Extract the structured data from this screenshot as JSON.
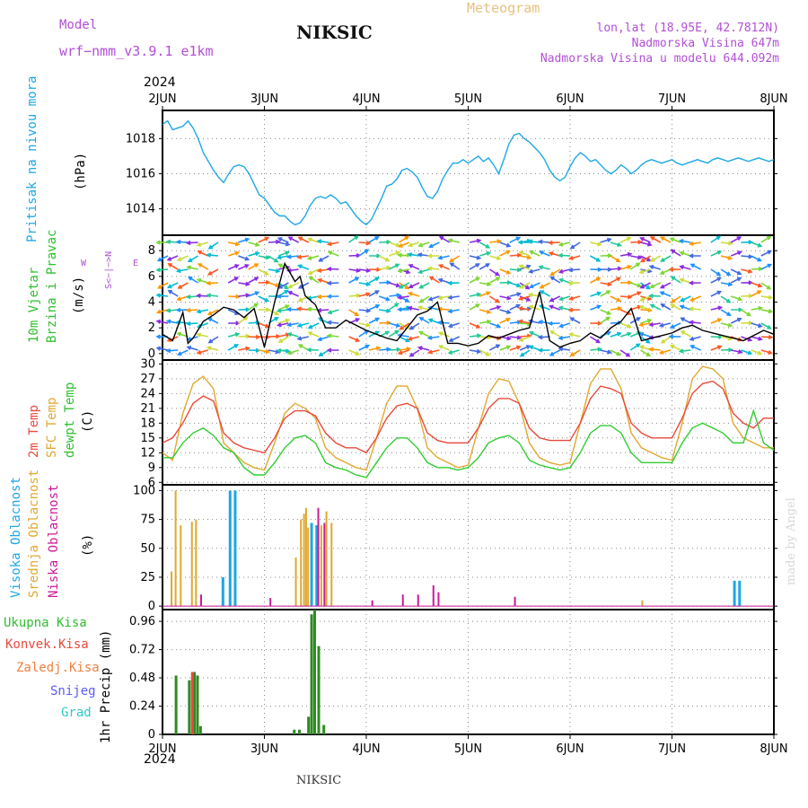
{
  "header": {
    "model_label": "Model",
    "model_name": "wrf−nmm_v3.9.1 e1km",
    "station": "NIKSIC",
    "meteogram": "Meteogram",
    "lonlat": "lon,lat (18.95E, 42.7812N)",
    "elevation": "Nadmorska Visina 647m",
    "model_elevation": "Nadmorska Visina u modelu 644.092m",
    "year": "2024",
    "footer_station": "NIKSIC",
    "credit": "made by Angel"
  },
  "colors": {
    "pressure": "#1ea7e6",
    "temp2m": "#e84a3c",
    "sfc": "#e0a830",
    "dewpt": "#30cc30",
    "high_cloud": "#1ea7e6",
    "mid_cloud": "#e0a830",
    "low_cloud": "#cc1a9a",
    "precip_total": "#2e8b20",
    "precip_conv": "#e84a3c"
  },
  "panels": {
    "pressure": {
      "label1": "Pritisak na nivou mora",
      "unit": "(hPa)"
    },
    "wind": {
      "label1": "10m Vjetar",
      "label2": "Brzina i Pravac",
      "unit": "(m/s)",
      "compass_n": "N",
      "compass_w": "W",
      "compass_e": "E",
      "compass_s": "S",
      "compass_mid": "<−|−>"
    },
    "temp": {
      "label1": "2m Temp",
      "label2": "SFC Temp",
      "label3": "dewpt Temp",
      "unit": "(C)"
    },
    "cloud": {
      "label1": "Visoka Oblacnost",
      "label2": "Srednja Oblacnost",
      "label3": "Niska Oblacnost",
      "unit": "(%)"
    },
    "precip": {
      "label1": "Ukupna Kisa",
      "label2": "Konvek.Kisa",
      "label3": "Zaledj.Kisa",
      "label4": "Snijeg",
      "label5": "Grad",
      "unit": "1hr Precip (mm)"
    }
  },
  "chart_data": [
    {
      "type": "line",
      "panel": "pressure",
      "ylim": [
        1012.5,
        1019.6
      ],
      "yticks": [
        "1014",
        "1016",
        "1018"
      ],
      "x_categories": [
        "2JUN",
        "3JUN",
        "4JUN",
        "5JUN",
        "6JUN",
        "7JUN",
        "8JUN"
      ],
      "series": [
        {
          "x": [
            0,
            0.05,
            0.1,
            0.15,
            0.2,
            0.25,
            0.3,
            0.35,
            0.4,
            0.45,
            0.5,
            0.55,
            0.6,
            0.65,
            0.7,
            0.75,
            0.8,
            0.85,
            0.9,
            0.95,
            1.0,
            1.05,
            1.1,
            1.15,
            1.2,
            1.25,
            1.3,
            1.35,
            1.4,
            1.45,
            1.5,
            1.55,
            1.6,
            1.65,
            1.7,
            1.75,
            1.8,
            1.85,
            1.9,
            1.95,
            2.0,
            2.05,
            2.1,
            2.15,
            2.2,
            2.25,
            2.3,
            2.35,
            2.4,
            2.45,
            2.5,
            2.55,
            2.6,
            2.65,
            2.7,
            2.75,
            2.8,
            2.85,
            2.9,
            2.95,
            3.0,
            3.05,
            3.1,
            3.15,
            3.2,
            3.25,
            3.3,
            3.35,
            3.4,
            3.45,
            3.5,
            3.55,
            3.6,
            3.65,
            3.7,
            3.75,
            3.8,
            3.85,
            3.9,
            3.95,
            4.0,
            4.05,
            4.1,
            4.15,
            4.2,
            4.25,
            4.3,
            4.35,
            4.4,
            4.45,
            4.5,
            4.55,
            4.6,
            4.65,
            4.7,
            4.75,
            4.8,
            4.85,
            4.9,
            4.95,
            5.0,
            5.05,
            5.1,
            5.15,
            5.2,
            5.25,
            5.3,
            5.35,
            5.4,
            5.45,
            5.5,
            5.55,
            5.6,
            5.65,
            5.7,
            5.75,
            5.8,
            5.85,
            5.9,
            5.95,
            6.0
          ],
          "values": [
            1018.8,
            1019.0,
            1018.5,
            1018.6,
            1018.7,
            1019.0,
            1018.6,
            1018.0,
            1017.2,
            1016.7,
            1016.2,
            1015.8,
            1015.5,
            1016.0,
            1016.4,
            1016.5,
            1016.4,
            1016.0,
            1015.4,
            1014.8,
            1014.6,
            1014.2,
            1013.8,
            1013.6,
            1013.6,
            1013.3,
            1013.1,
            1013.2,
            1013.6,
            1014.2,
            1014.6,
            1014.7,
            1014.6,
            1014.8,
            1014.6,
            1014.3,
            1014.4,
            1014.0,
            1013.6,
            1013.3,
            1013.1,
            1013.4,
            1014.0,
            1014.6,
            1015.3,
            1015.4,
            1015.7,
            1016.2,
            1016.3,
            1016.1,
            1015.8,
            1015.2,
            1014.7,
            1014.6,
            1015.0,
            1015.7,
            1016.2,
            1016.6,
            1016.6,
            1016.8,
            1016.6,
            1016.8,
            1017.0,
            1016.7,
            1016.9,
            1016.5,
            1016.0,
            1016.8,
            1017.7,
            1018.2,
            1018.3,
            1018.0,
            1017.8,
            1017.5,
            1017.2,
            1016.8,
            1016.2,
            1015.8,
            1015.6,
            1015.8,
            1016.4,
            1016.9,
            1017.2,
            1017.0,
            1016.7,
            1016.8,
            1016.5,
            1016.2,
            1016.0,
            1016.2,
            1016.5,
            1016.3,
            1016.0,
            1016.2,
            1016.5,
            1016.7,
            1016.8,
            1016.7,
            1016.6,
            1016.7,
            1016.8,
            1016.6,
            1016.5,
            1016.6,
            1016.7,
            1016.8,
            1016.7,
            1016.6,
            1016.8,
            1016.9,
            1016.8,
            1016.7,
            1016.8,
            1016.9,
            1016.8,
            1016.7,
            1016.8,
            1016.9,
            1016.8,
            1016.7,
            1016.8
          ]
        }
      ]
    },
    {
      "type": "line",
      "panel": "wind",
      "ylim": [
        -0.5,
        9.2
      ],
      "yticks": [
        "0",
        "2",
        "4",
        "6",
        "8"
      ],
      "series": [
        {
          "x": [
            0,
            0.1,
            0.2,
            0.25,
            0.3,
            0.4,
            0.5,
            0.6,
            0.7,
            0.8,
            0.9,
            1.0,
            1.1,
            1.2,
            1.3,
            1.35,
            1.4,
            1.5,
            1.6,
            1.7,
            1.8,
            1.9,
            2.0,
            2.1,
            2.2,
            2.3,
            2.4,
            2.5,
            2.6,
            2.7,
            2.8,
            2.9,
            3.0,
            3.1,
            3.2,
            3.3,
            3.4,
            3.5,
            3.6,
            3.7,
            3.8,
            3.9,
            4.0,
            4.1,
            4.2,
            4.3,
            4.4,
            4.5,
            4.6,
            4.7,
            4.8,
            4.9,
            5.0,
            5.1,
            5.2,
            5.3,
            5.4,
            5.5,
            5.6,
            5.7,
            5.8,
            5.9,
            6.0
          ],
          "values": [
            1.5,
            1.0,
            3.2,
            0.8,
            1.2,
            2.5,
            3.0,
            3.6,
            3.4,
            2.8,
            3.5,
            0.5,
            4.0,
            7.0,
            5.6,
            6.0,
            4.5,
            3.8,
            2.0,
            2.0,
            2.6,
            2.2,
            1.8,
            1.5,
            1.2,
            1.0,
            2.0,
            3.0,
            3.3,
            4.0,
            0.8,
            0.8,
            0.6,
            0.8,
            1.4,
            1.2,
            1.5,
            1.8,
            2.0,
            4.8,
            1.0,
            0.5,
            0.8,
            1.0,
            1.6,
            1.2,
            2.0,
            2.5,
            3.5,
            1.0,
            1.2,
            1.4,
            1.6,
            2.0,
            2.2,
            1.8,
            1.6,
            1.4,
            1.2,
            1.0,
            1.4,
            1.8,
            1.5
          ]
        }
      ]
    },
    {
      "type": "line",
      "panel": "temperature",
      "ylim": [
        5.5,
        30.8
      ],
      "yticks": [
        "6",
        "9",
        "12",
        "15",
        "18",
        "21",
        "24",
        "27",
        "30"
      ],
      "series": [
        {
          "x": [
            0,
            0.1,
            0.2,
            0.3,
            0.4,
            0.5,
            0.6,
            0.7,
            0.8,
            0.9,
            1.0,
            1.1,
            1.2,
            1.3,
            1.4,
            1.5,
            1.6,
            1.7,
            1.8,
            1.9,
            2.0,
            2.1,
            2.2,
            2.3,
            2.4,
            2.5,
            2.6,
            2.7,
            2.8,
            2.9,
            3.0,
            3.1,
            3.2,
            3.3,
            3.4,
            3.5,
            3.6,
            3.7,
            3.8,
            3.9,
            4.0,
            4.1,
            4.2,
            4.3,
            4.4,
            4.5,
            4.6,
            4.7,
            4.8,
            4.9,
            5.0,
            5.1,
            5.2,
            5.3,
            5.4,
            5.5,
            5.6,
            5.7,
            5.8,
            5.9,
            6.0
          ],
          "values": [
            14,
            15,
            18,
            22,
            23.5,
            22.5,
            16,
            14,
            13,
            12.5,
            12,
            15,
            19,
            20.5,
            20.5,
            19.5,
            16,
            14,
            13,
            13,
            12,
            15,
            19,
            21.5,
            22,
            21,
            16,
            14.5,
            14,
            14,
            14,
            17,
            21,
            23,
            23,
            22,
            17,
            15,
            14.5,
            14.5,
            14.5,
            18,
            23,
            25.5,
            25,
            24,
            18,
            16,
            15,
            15,
            15,
            19,
            24,
            26,
            26.5,
            25,
            20,
            18,
            17,
            19,
            19
          ]
        },
        {
          "x": [
            0,
            0.1,
            0.2,
            0.3,
            0.4,
            0.5,
            0.6,
            0.7,
            0.8,
            0.9,
            1.0,
            1.1,
            1.2,
            1.3,
            1.4,
            1.5,
            1.6,
            1.7,
            1.8,
            1.9,
            2.0,
            2.1,
            2.2,
            2.3,
            2.4,
            2.5,
            2.6,
            2.7,
            2.8,
            2.9,
            3.0,
            3.1,
            3.2,
            3.3,
            3.4,
            3.5,
            3.6,
            3.7,
            3.8,
            3.9,
            4.0,
            4.1,
            4.2,
            4.3,
            4.4,
            4.5,
            4.6,
            4.7,
            4.8,
            4.9,
            5.0,
            5.1,
            5.2,
            5.3,
            5.4,
            5.5,
            5.6,
            5.7,
            5.8,
            5.9,
            6.0
          ],
          "values": [
            12,
            10.5,
            20,
            26,
            27.5,
            25,
            14,
            12,
            10,
            9,
            8.5,
            14,
            20,
            22,
            21,
            19,
            13,
            11,
            10,
            9,
            8.5,
            15,
            22,
            25.5,
            25.5,
            21,
            13,
            11,
            10,
            9,
            9.5,
            17,
            24,
            27,
            26.5,
            22,
            14,
            11,
            10,
            9.5,
            10,
            18,
            26,
            29,
            29,
            25,
            16,
            13,
            12,
            11,
            10.5,
            18,
            27,
            29.5,
            29,
            27,
            18,
            15,
            14,
            13,
            13
          ]
        },
        {
          "x": [
            0,
            0.1,
            0.2,
            0.3,
            0.4,
            0.5,
            0.6,
            0.7,
            0.8,
            0.9,
            1.0,
            1.1,
            1.2,
            1.3,
            1.4,
            1.5,
            1.6,
            1.7,
            1.8,
            1.9,
            2.0,
            2.1,
            2.2,
            2.3,
            2.4,
            2.5,
            2.6,
            2.7,
            2.8,
            2.9,
            3.0,
            3.1,
            3.2,
            3.3,
            3.4,
            3.5,
            3.6,
            3.7,
            3.8,
            3.9,
            4.0,
            4.1,
            4.2,
            4.3,
            4.4,
            4.5,
            4.6,
            4.7,
            4.8,
            4.9,
            5.0,
            5.1,
            5.2,
            5.3,
            5.4,
            5.5,
            5.6,
            5.7,
            5.8,
            5.9,
            6.0
          ],
          "values": [
            11,
            11,
            14,
            16,
            17,
            15.5,
            13,
            12,
            9,
            7.5,
            7.5,
            10,
            13,
            15,
            15.5,
            14,
            10,
            9,
            8.5,
            7.5,
            7,
            10,
            13,
            15,
            15,
            13,
            10,
            9,
            9,
            8.5,
            9,
            11,
            14,
            15,
            15.5,
            14,
            10.5,
            9.5,
            9,
            8.5,
            9,
            12,
            16,
            17.5,
            17.5,
            16,
            12,
            10,
            10,
            10,
            10,
            14,
            17,
            18,
            17,
            16,
            14,
            14,
            20.5,
            14,
            12.5
          ]
        }
      ]
    },
    {
      "type": "bar",
      "panel": "cloud",
      "ylim": [
        -3,
        105
      ],
      "yticks": [
        "0",
        "25",
        "50",
        "75",
        "100"
      ],
      "series": [
        {
          "x": [
            0.58,
            0.65,
            0.7,
            1.45,
            1.5,
            5.6,
            5.65
          ],
          "values": [
            25,
            100,
            100,
            72,
            70,
            22,
            22
          ]
        },
        {
          "x": [
            0.08,
            0.12,
            0.17,
            0.28,
            0.32,
            1.3,
            1.35,
            1.38,
            1.4,
            1.42,
            1.55,
            1.6,
            1.65,
            4.7
          ],
          "values": [
            30,
            100,
            70,
            73,
            75,
            42,
            75,
            80,
            85,
            68,
            70,
            82,
            72,
            5
          ]
        },
        {
          "x": [
            0.37,
            1.05,
            1.52,
            1.58,
            2.05,
            2.35,
            2.5,
            2.65,
            2.7,
            3.45
          ],
          "values": [
            10,
            7,
            85,
            72,
            5,
            10,
            10,
            18,
            12,
            8
          ]
        }
      ]
    },
    {
      "type": "bar",
      "panel": "precip",
      "ylim": [
        0,
        1.06
      ],
      "yticks": [
        "0",
        "0.24",
        "0.48",
        "0.72",
        "0.96"
      ],
      "series": [
        {
          "x": [
            0.12,
            0.25,
            0.3,
            0.33,
            0.36,
            1.28,
            1.33,
            1.42,
            1.45,
            1.48,
            1.52,
            1.57
          ],
          "values": [
            0.5,
            0.46,
            0.53,
            0.5,
            0.07,
            0.04,
            0.04,
            0.15,
            1.02,
            1.06,
            0.75,
            0.08
          ]
        },
        {
          "x": [
            0.28
          ],
          "values": [
            0.53
          ]
        }
      ]
    }
  ]
}
